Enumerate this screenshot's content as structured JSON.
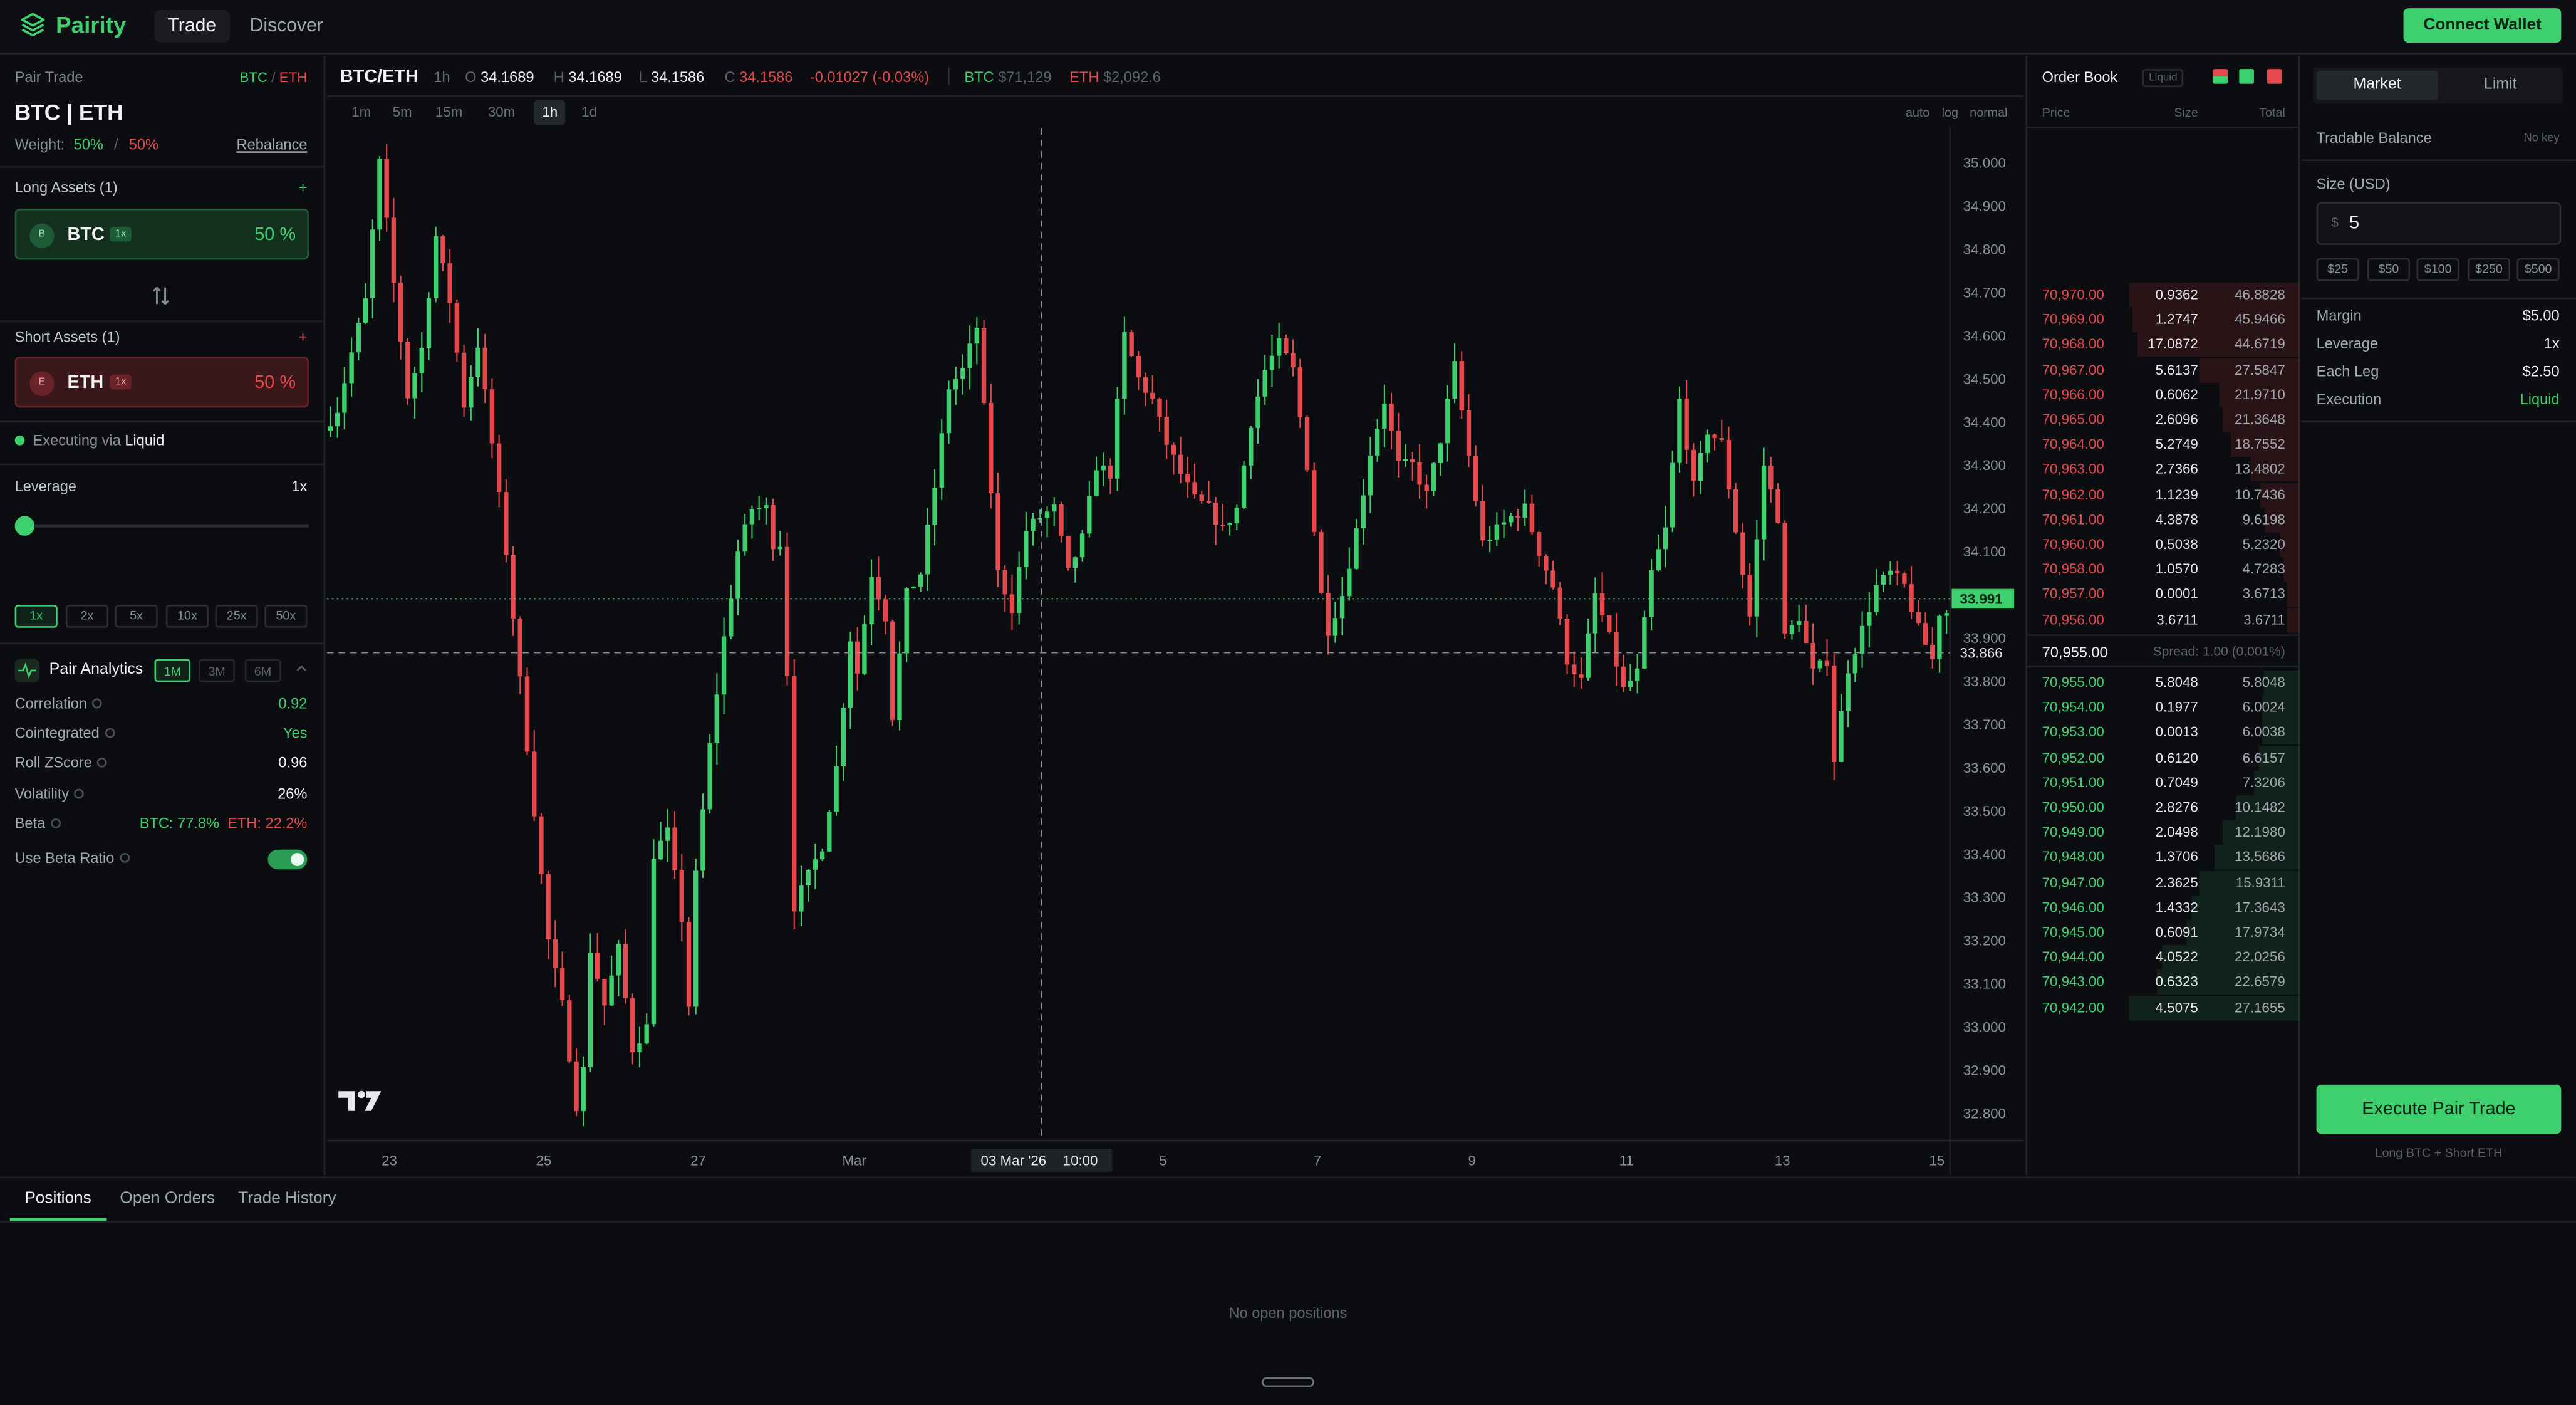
{
  "app": {
    "name": "Pairity",
    "nav": [
      "Trade",
      "Discover"
    ],
    "connect_label": "Connect Wallet"
  },
  "colors": {
    "accent": "#3ecf6e",
    "up": "#3ecf6e",
    "down": "#e5484d",
    "bg": "#0c0d10",
    "panel_line": "#22252b"
  },
  "left": {
    "section_title": "Pair Trade",
    "pair_tag_long": "BTC",
    "pair_tag_sep": "/",
    "pair_tag_short": "ETH",
    "pair_title": "BTC | ETH",
    "weight_label": "Weight:",
    "weight_long": "50%",
    "weight_sep": "/",
    "weight_short": "50%",
    "rebalance_label": "Rebalance",
    "long_title": "Long Assets (1)",
    "add": "+",
    "long_asset": {
      "sym": "BTC",
      "icon_letter": "B",
      "lev": "1x",
      "pct": "50 %"
    },
    "short_title": "Short Assets (1)",
    "short_asset": {
      "sym": "ETH",
      "icon_letter": "E",
      "lev": "1x",
      "pct": "50 %"
    },
    "executing_prefix": "Executing via",
    "executing_venue": "Liquid",
    "leverage_label": "Leverage",
    "leverage_value": "1x",
    "leverage_fraction": 0,
    "leverage_options": [
      "1x",
      "2x",
      "5x",
      "10x",
      "25x",
      "50x"
    ],
    "analytics_title": "Pair Analytics",
    "analytics_ranges": [
      "1M",
      "3M",
      "6M"
    ],
    "analytics_rows": [
      {
        "k": "Correlation",
        "v": "0.92",
        "tone": "green"
      },
      {
        "k": "Cointegrated",
        "v": "Yes",
        "tone": "green"
      },
      {
        "k": "Roll ZScore",
        "v": "0.96",
        "tone": "white"
      },
      {
        "k": "Volatility",
        "v": "26%",
        "tone": "white"
      }
    ],
    "beta_label": "Beta",
    "beta_btc": "BTC: 77.8%",
    "beta_eth": "ETH: 22.2%",
    "beta_ratio_label": "Use Beta Ratio",
    "beta_ratio_on": true
  },
  "chart_header": {
    "symbol": "BTC/ETH",
    "interval": "1h",
    "o_label": "O",
    "o": "34.1689",
    "h_label": "H",
    "h": "34.1689",
    "l_label": "L",
    "l": "34.1586",
    "c_label": "C",
    "c": "34.1586",
    "change": "-0.01027 (-0.03%)",
    "btc_label": "BTC",
    "btc_price": "$71,129",
    "eth_label": "ETH",
    "eth_price": "$2,092.6"
  },
  "chart_toolbar": {
    "intervals": [
      "1m",
      "5m",
      "15m",
      "30m",
      "1h",
      "1d"
    ],
    "active": "1h",
    "auto": "auto",
    "log": "log",
    "normal": "normal"
  },
  "chart_data": {
    "type": "candlestick",
    "interval": "1h",
    "ylim": [
      32.76,
      35.08
    ],
    "y_ticks": [
      "35.000",
      "34.900",
      "34.800",
      "34.700",
      "34.600",
      "34.500",
      "34.400",
      "34.300",
      "34.200",
      "34.100",
      "33.900",
      "33.800",
      "33.700",
      "33.600",
      "33.500",
      "33.400",
      "33.300",
      "33.200",
      "33.100",
      "33.000",
      "32.900",
      "32.800"
    ],
    "x_ticks": [
      "23",
      "25",
      "27",
      "Mar",
      "5",
      "7",
      "9",
      "11",
      "13",
      "15"
    ],
    "last_price": "33.991",
    "crosshair_price": "33.866",
    "crosshair_date": "03 Mar '26",
    "crosshair_time": "10:00",
    "path": [
      [
        0,
        34.38
      ],
      [
        2,
        34.43
      ],
      [
        4,
        34.56
      ],
      [
        6,
        34.68
      ],
      [
        8,
        35.0
      ],
      [
        10,
        34.72
      ],
      [
        12,
        34.46
      ],
      [
        14,
        34.57
      ],
      [
        16,
        34.83
      ],
      [
        18,
        34.68
      ],
      [
        20,
        34.44
      ],
      [
        22,
        34.58
      ],
      [
        24,
        34.35
      ],
      [
        26,
        34.1
      ],
      [
        28,
        33.8
      ],
      [
        30,
        33.5
      ],
      [
        32,
        33.2
      ],
      [
        34,
        33.05
      ],
      [
        36,
        32.82
      ],
      [
        37,
        32.9
      ],
      [
        38,
        33.18
      ],
      [
        40,
        33.05
      ],
      [
        42,
        33.18
      ],
      [
        44,
        32.95
      ],
      [
        46,
        33.0
      ],
      [
        47,
        33.4
      ],
      [
        49,
        33.45
      ],
      [
        51,
        33.25
      ],
      [
        52,
        33.05
      ],
      [
        53,
        33.35
      ],
      [
        55,
        33.65
      ],
      [
        57,
        33.9
      ],
      [
        59,
        34.1
      ],
      [
        61,
        34.2
      ],
      [
        63,
        34.2
      ],
      [
        64,
        34.12
      ],
      [
        65,
        34.12
      ],
      [
        66,
        33.82
      ],
      [
        67,
        33.28
      ],
      [
        69,
        33.35
      ],
      [
        71,
        33.42
      ],
      [
        73,
        33.6
      ],
      [
        75,
        33.9
      ],
      [
        76,
        33.82
      ],
      [
        78,
        34.05
      ],
      [
        80,
        33.95
      ],
      [
        81,
        33.72
      ],
      [
        83,
        34.0
      ],
      [
        85,
        34.05
      ],
      [
        87,
        34.25
      ],
      [
        89,
        34.48
      ],
      [
        91,
        34.52
      ],
      [
        93,
        34.62
      ],
      [
        94,
        34.43
      ],
      [
        96,
        34.05
      ],
      [
        98,
        33.97
      ],
      [
        100,
        34.15
      ],
      [
        102,
        34.18
      ],
      [
        104,
        34.2
      ],
      [
        106,
        34.05
      ],
      [
        108,
        34.13
      ],
      [
        110,
        34.3
      ],
      [
        112,
        34.28
      ],
      [
        114,
        34.6
      ],
      [
        116,
        34.5
      ],
      [
        118,
        34.45
      ],
      [
        120,
        34.35
      ],
      [
        122,
        34.28
      ],
      [
        124,
        34.22
      ],
      [
        126,
        34.2
      ],
      [
        128,
        34.15
      ],
      [
        130,
        34.2
      ],
      [
        132,
        34.4
      ],
      [
        134,
        34.52
      ],
      [
        136,
        34.58
      ],
      [
        138,
        34.52
      ],
      [
        140,
        34.3
      ],
      [
        142,
        34.0
      ],
      [
        143,
        33.92
      ],
      [
        145,
        34.0
      ],
      [
        147,
        34.15
      ],
      [
        149,
        34.33
      ],
      [
        151,
        34.45
      ],
      [
        153,
        34.3
      ],
      [
        155,
        34.3
      ],
      [
        157,
        34.23
      ],
      [
        159,
        34.36
      ],
      [
        161,
        34.53
      ],
      [
        163,
        34.32
      ],
      [
        165,
        34.12
      ],
      [
        167,
        34.15
      ],
      [
        169,
        34.18
      ],
      [
        171,
        34.2
      ],
      [
        173,
        34.1
      ],
      [
        175,
        34.02
      ],
      [
        177,
        33.85
      ],
      [
        179,
        33.8
      ],
      [
        181,
        34.0
      ],
      [
        183,
        33.9
      ],
      [
        185,
        33.78
      ],
      [
        187,
        33.82
      ],
      [
        189,
        34.05
      ],
      [
        191,
        34.15
      ],
      [
        193,
        34.45
      ],
      [
        195,
        34.25
      ],
      [
        197,
        34.38
      ],
      [
        199,
        34.35
      ],
      [
        201,
        34.15
      ],
      [
        203,
        33.95
      ],
      [
        205,
        34.3
      ],
      [
        207,
        34.18
      ],
      [
        208,
        33.9
      ],
      [
        210,
        33.95
      ],
      [
        212,
        33.82
      ],
      [
        214,
        33.85
      ],
      [
        215,
        33.62
      ],
      [
        217,
        33.83
      ],
      [
        219,
        33.92
      ],
      [
        221,
        34.02
      ],
      [
        223,
        34.05
      ],
      [
        225,
        34.02
      ],
      [
        227,
        33.92
      ],
      [
        229,
        33.85
      ],
      [
        230,
        33.96
      ]
    ]
  },
  "orderbook": {
    "title": "Order Book",
    "badge": "Liquid",
    "headers": [
      "Price",
      "Size",
      "Total"
    ],
    "asks": [
      [
        "70,970.00",
        "0.9362",
        "46.8828"
      ],
      [
        "70,969.00",
        "1.2747",
        "45.9466"
      ],
      [
        "70,968.00",
        "17.0872",
        "44.6719"
      ],
      [
        "70,967.00",
        "5.6137",
        "27.5847"
      ],
      [
        "70,966.00",
        "0.6062",
        "21.9710"
      ],
      [
        "70,965.00",
        "2.6096",
        "21.3648"
      ],
      [
        "70,964.00",
        "5.2749",
        "18.7552"
      ],
      [
        "70,963.00",
        "2.7366",
        "13.4802"
      ],
      [
        "70,962.00",
        "1.1239",
        "10.7436"
      ],
      [
        "70,961.00",
        "4.3878",
        "9.6198"
      ],
      [
        "70,960.00",
        "0.5038",
        "5.2320"
      ],
      [
        "70,958.00",
        "1.0570",
        "4.7283"
      ],
      [
        "70,957.00",
        "0.0001",
        "3.6713"
      ],
      [
        "70,956.00",
        "3.6711",
        "3.6711"
      ]
    ],
    "mid_price": "70,955.00",
    "spread": "Spread: 1.00 (0.001%)",
    "bids": [
      [
        "70,955.00",
        "5.8048",
        "5.8048"
      ],
      [
        "70,954.00",
        "0.1977",
        "6.0024"
      ],
      [
        "70,953.00",
        "0.0013",
        "6.0038"
      ],
      [
        "70,952.00",
        "0.6120",
        "6.6157"
      ],
      [
        "70,951.00",
        "0.7049",
        "7.3206"
      ],
      [
        "70,950.00",
        "2.8276",
        "10.1482"
      ],
      [
        "70,949.00",
        "2.0498",
        "12.1980"
      ],
      [
        "70,948.00",
        "1.3706",
        "13.5686"
      ],
      [
        "70,947.00",
        "2.3625",
        "15.9311"
      ],
      [
        "70,946.00",
        "1.4332",
        "17.3643"
      ],
      [
        "70,945.00",
        "0.6091",
        "17.9734"
      ],
      [
        "70,944.00",
        "4.0522",
        "22.0256"
      ],
      [
        "70,943.00",
        "0.6323",
        "22.6579"
      ],
      [
        "70,942.00",
        "4.5075",
        "27.1655"
      ]
    ]
  },
  "trade": {
    "tabs": [
      "Market",
      "Limit"
    ],
    "active_tab": "Market",
    "balance_label": "Tradable Balance",
    "balance_value": "No key",
    "size_label": "Size (USD)",
    "size_prefix": "$",
    "size_value": "5",
    "quick": [
      "$25",
      "$50",
      "$100",
      "$250",
      "$500"
    ],
    "rows": [
      {
        "k": "Margin",
        "v": "$5.00",
        "tone": "white"
      },
      {
        "k": "Leverage",
        "v": "1x",
        "tone": "white"
      },
      {
        "k": "Each Leg",
        "v": "$2.50",
        "tone": "white"
      },
      {
        "k": "Execution",
        "v": "Liquid",
        "tone": "green"
      }
    ],
    "execute_label": "Execute Pair Trade",
    "execute_sub": "Long BTC + Short ETH"
  },
  "bottom": {
    "tabs": [
      "Positions",
      "Open Orders",
      "Trade History"
    ],
    "active": "Positions",
    "empty": "No open positions"
  },
  "icons": {
    "logo": "layers-icon",
    "swap": "swap-vertical-icon",
    "analytics": "pulse-icon",
    "collapse": "chevron-up-icon",
    "watermark": "tradingview-logo"
  }
}
